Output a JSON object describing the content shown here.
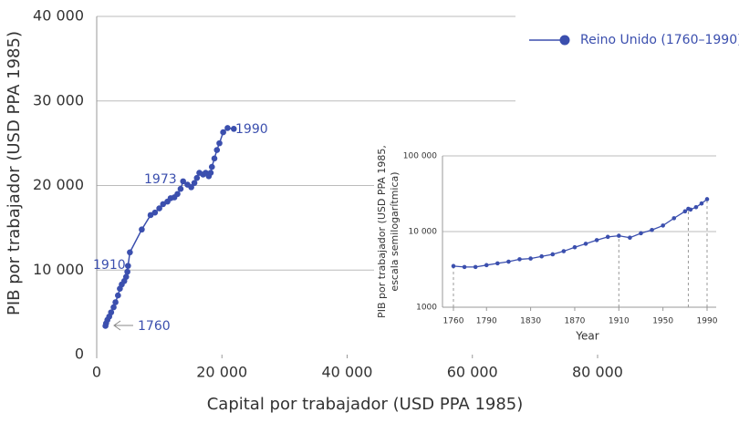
{
  "chart_data": [
    {
      "type": "line",
      "ylabel": "PIB por trabajador (USD PPA 1985)",
      "xlabel": "Capital por trabajador (USD PPA 1985)",
      "xlim": [
        0,
        80000
      ],
      "ylim": [
        0,
        40000
      ],
      "xticks": [
        0,
        {
          "value": 20000,
          "label": "20 000"
        },
        {
          "value": 40000,
          "label": "40 000"
        },
        {
          "value": 60000,
          "label": "60 000"
        },
        {
          "value": 80000,
          "label": "80 000"
        }
      ],
      "yticks": [
        0,
        {
          "value": 10000,
          "label": "10 000"
        },
        {
          "value": 20000,
          "label": "20 000"
        },
        {
          "value": 30000,
          "label": "30 000"
        },
        {
          "value": 40000,
          "label": "40 000"
        }
      ],
      "grid": true,
      "legend": "top-right",
      "annotations": [
        "1760",
        "1910",
        "1973",
        "1990"
      ],
      "series": [
        {
          "name": "Reino Unido (1760–1990)",
          "color": "#3b4fae",
          "x": [
            1400,
            1500,
            1700,
            2000,
            2300,
            2700,
            3000,
            3400,
            3700,
            4000,
            4400,
            4700,
            4900,
            5000,
            5300,
            7200,
            8600,
            9300,
            10000,
            10600,
            11300,
            11800,
            12400,
            12900,
            13400,
            13800,
            14500,
            15100,
            15600,
            16000,
            16400,
            17000,
            17400,
            17900,
            18200,
            18400,
            18800,
            19200,
            19600,
            20200,
            20900,
            21900
          ],
          "values": [
            3400,
            3700,
            4100,
            4500,
            5000,
            5600,
            6200,
            7000,
            7800,
            8300,
            8700,
            9200,
            9800,
            10500,
            12100,
            14800,
            16500,
            16800,
            17300,
            17800,
            18100,
            18500,
            18600,
            19000,
            19600,
            20500,
            20100,
            19800,
            20300,
            20900,
            21500,
            21300,
            21500,
            21100,
            21500,
            22200,
            23200,
            24200,
            25000,
            26300,
            26800,
            26700
          ]
        }
      ]
    },
    {
      "type": "line",
      "ylabel": [
        "PIB por trabajador (USD PPA 1985,",
        "escala semilogarítmica)"
      ],
      "xlabel": "Year",
      "log_scale": true,
      "xlim": [
        1760,
        1990
      ],
      "ylim": [
        1000,
        100000
      ],
      "xticks": [
        1760,
        1790,
        1830,
        1870,
        1910,
        1950,
        1990
      ],
      "yticks": [
        1000,
        {
          "value": 10000,
          "label": "10 000"
        },
        {
          "value": 100000,
          "label": "100 000"
        }
      ],
      "grid": true,
      "reference_lines": [
        1760,
        1910,
        1973,
        1990
      ],
      "color": "#3b4fae",
      "x": [
        1760,
        1770,
        1780,
        1790,
        1800,
        1810,
        1820,
        1830,
        1840,
        1850,
        1860,
        1870,
        1880,
        1890,
        1900,
        1910,
        1920,
        1930,
        1940,
        1950,
        1960,
        1970,
        1973,
        1975,
        1980,
        1985,
        1990
      ],
      "values": [
        3500,
        3400,
        3400,
        3600,
        3800,
        4000,
        4300,
        4400,
        4700,
        5000,
        5500,
        6200,
        6900,
        7700,
        8500,
        8800,
        8300,
        9500,
        10500,
        12000,
        15000,
        18500,
        20000,
        19500,
        21000,
        23500,
        26800
      ]
    }
  ]
}
